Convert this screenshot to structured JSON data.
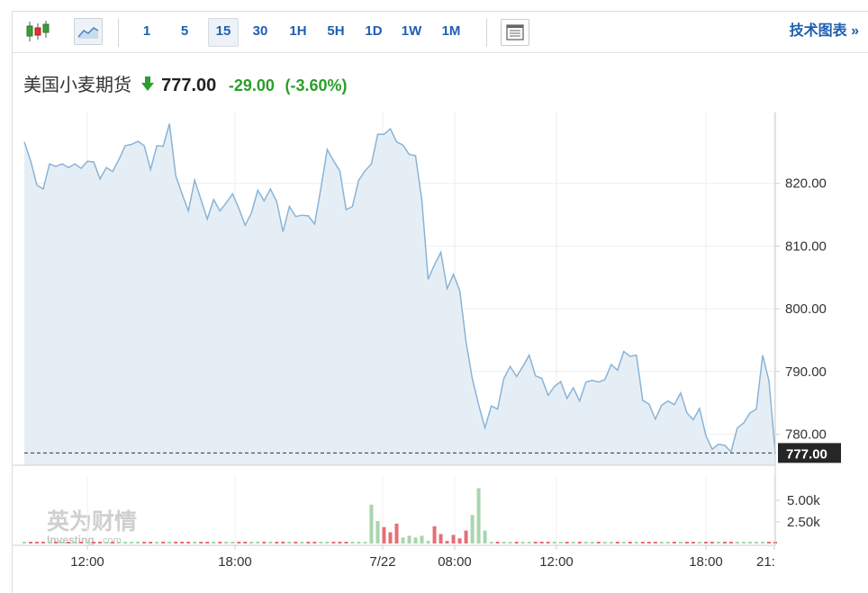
{
  "toolbar": {
    "intervals": [
      {
        "label": "1",
        "selected": false
      },
      {
        "label": "5",
        "selected": false
      },
      {
        "label": "15",
        "selected": true
      },
      {
        "label": "30",
        "selected": false
      },
      {
        "label": "1H",
        "selected": false
      },
      {
        "label": "5H",
        "selected": false
      },
      {
        "label": "1D",
        "selected": false
      },
      {
        "label": "1W",
        "selected": false
      },
      {
        "label": "1M",
        "selected": false
      }
    ],
    "tech_chart_label": "技术图表 »",
    "icons": [
      "candlestick-icon",
      "area-chart-icon",
      "news-panel-icon"
    ]
  },
  "quote": {
    "name": "美国小麦期货",
    "direction_icon": "down-arrow-icon",
    "price": "777.00",
    "change": "-29.00",
    "change_pct": "(-3.60%)",
    "down_color": "#2b9e2b"
  },
  "watermark": {
    "cn": "英为财情",
    "en": "Investing",
    "suffix": ".com"
  },
  "chart_data": {
    "type": "area",
    "y_ticks": [
      780,
      790,
      800,
      810,
      820
    ],
    "y_tick_labels": [
      "780.00",
      "790.00",
      "800.00",
      "810.00",
      "820.00"
    ],
    "last_price": 777.0,
    "last_price_label": "777.00",
    "x_tick_labels": [
      "12:00",
      "18:00",
      "7/22",
      "08:00",
      "12:00",
      "18:00",
      "21:"
    ],
    "colors": {
      "line": "#88b4d8",
      "fill": "#e6eef5",
      "up_volume": "#a7d6ae",
      "down_volume": "#e46f76",
      "price_tag": "#262626"
    },
    "price": [
      826.6,
      823.6,
      819.7,
      819.1,
      823.1,
      822.7,
      823.1,
      822.5,
      823.1,
      822.4,
      823.5,
      823.4,
      820.7,
      822.5,
      821.9,
      823.8,
      826.0,
      826.2,
      826.7,
      826.0,
      822.2,
      826.0,
      825.9,
      829.5,
      821.2,
      818.3,
      815.6,
      820.5,
      817.4,
      814.3,
      817.4,
      815.6,
      816.9,
      818.3,
      816.0,
      813.3,
      815.3,
      818.9,
      817.2,
      819.1,
      817.1,
      812.3,
      816.3,
      814.7,
      814.9,
      814.8,
      813.5,
      819.2,
      825.4,
      823.6,
      822.0,
      815.8,
      816.3,
      820.5,
      822.0,
      823.1,
      827.8,
      827.8,
      828.7,
      826.6,
      826.1,
      824.6,
      824.4,
      817.3,
      804.7,
      807.0,
      809.0,
      803.2,
      805.5,
      802.9,
      794.7,
      788.8,
      784.7,
      781.0,
      784.5,
      784.0,
      788.9,
      790.8,
      789.2,
      790.8,
      792.6,
      789.3,
      788.9,
      786.2,
      787.6,
      788.4,
      785.7,
      787.4,
      785.3,
      788.3,
      788.6,
      788.3,
      788.7,
      791.1,
      790.2,
      793.2,
      792.4,
      792.6,
      785.4,
      784.8,
      782.4,
      784.6,
      785.3,
      784.7,
      786.6,
      783.4,
      782.3,
      784.1,
      779.8,
      777.6,
      778.4,
      778.2,
      777.2,
      781.0,
      781.8,
      783.4,
      784.0,
      792.6,
      788.5,
      777.0
    ],
    "volume_axis": {
      "tick_labels": [
        "2.50k",
        "5.00k"
      ],
      "ticks": [
        2500,
        5000
      ]
    },
    "volume_bars": [
      {
        "i": 55,
        "v": 4500,
        "dir": "up"
      },
      {
        "i": 56,
        "v": 2600,
        "dir": "up"
      },
      {
        "i": 57,
        "v": 1900,
        "dir": "down"
      },
      {
        "i": 58,
        "v": 1300,
        "dir": "down"
      },
      {
        "i": 59,
        "v": 2300,
        "dir": "down"
      },
      {
        "i": 60,
        "v": 700,
        "dir": "up"
      },
      {
        "i": 61,
        "v": 900,
        "dir": "up"
      },
      {
        "i": 62,
        "v": 700,
        "dir": "up"
      },
      {
        "i": 63,
        "v": 900,
        "dir": "up"
      },
      {
        "i": 64,
        "v": 300,
        "dir": "up"
      },
      {
        "i": 65,
        "v": 2000,
        "dir": "down"
      },
      {
        "i": 66,
        "v": 1100,
        "dir": "down"
      },
      {
        "i": 67,
        "v": 300,
        "dir": "down"
      },
      {
        "i": 68,
        "v": 1000,
        "dir": "down"
      },
      {
        "i": 69,
        "v": 600,
        "dir": "down"
      },
      {
        "i": 70,
        "v": 1500,
        "dir": "down"
      },
      {
        "i": 71,
        "v": 3300,
        "dir": "up"
      },
      {
        "i": 72,
        "v": 6400,
        "dir": "up"
      },
      {
        "i": 73,
        "v": 1500,
        "dir": "up"
      }
    ]
  }
}
